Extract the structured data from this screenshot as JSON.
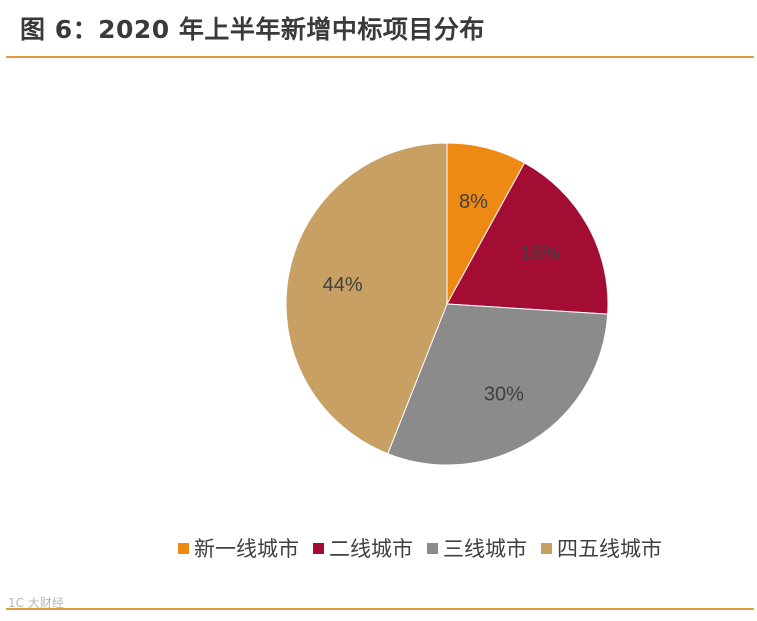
{
  "header": {
    "title": "图 6：2020 年上半年新增中标项目分布"
  },
  "chart_data": {
    "type": "pie",
    "title": "图 6：2020 年上半年新增中标项目分布",
    "categories": [
      "新一线城市",
      "二线城市",
      "三线城市",
      "四五线城市"
    ],
    "values": [
      8,
      18,
      30,
      44
    ],
    "labels": [
      "8%",
      "18%",
      "30%",
      "44%"
    ],
    "colors": [
      "#ee8a13",
      "#a30d33",
      "#8b8b8b",
      "#c8a064"
    ],
    "start": "12 o'clock",
    "direction": "clockwise",
    "legend_position": "bottom"
  },
  "watermark": "1C 大财经"
}
